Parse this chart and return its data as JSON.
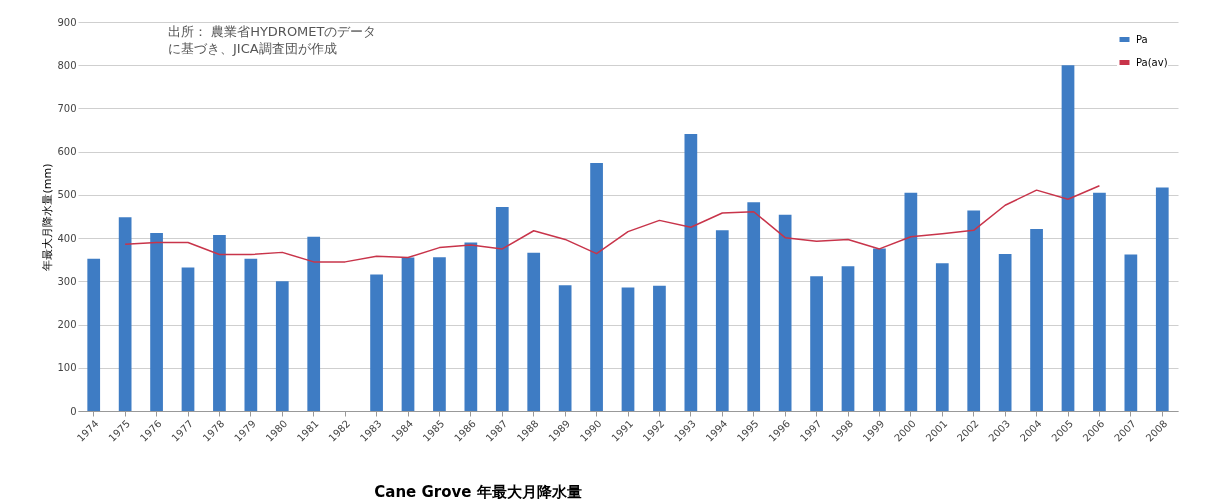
{
  "chart_data": {
    "type": "bar",
    "title": "Cane Grove 年最大月降水量",
    "ylabel": "年最大月降水量(mm)",
    "annotations": [
      "出所： 農業省HYDROMETのデータ",
      "に基づき、JICA調査団が作成"
    ],
    "categories": [
      "1974",
      "1975",
      "1976",
      "1977",
      "1978",
      "1979",
      "1980",
      "1981",
      "1982",
      "1983",
      "1984",
      "1985",
      "1986",
      "1987",
      "1988",
      "1989",
      "1990",
      "1991",
      "1992",
      "1993",
      "1994",
      "1995",
      "1996",
      "1997",
      "1998",
      "1999",
      "2000",
      "2001",
      "2002",
      "2003",
      "2004",
      "2005",
      "2006",
      "2007",
      "2008"
    ],
    "series": [
      {
        "name": "Pa",
        "color": "#3e7cc4",
        "values": [
          352,
          448,
          412,
          332,
          407,
          352,
          300,
          403,
          null,
          316,
          355,
          356,
          390,
          472,
          366,
          291,
          574,
          286,
          290,
          641,
          418,
          483,
          454,
          312,
          335,
          376,
          505,
          342,
          464,
          363,
          421,
          800,
          505,
          362,
          517
        ]
      },
      {
        "name": "Pa(av)",
        "type": "line",
        "color": "#c8344a",
        "values": [
          null,
          386,
          390,
          390,
          362,
          362,
          367,
          345,
          345,
          358,
          355,
          378,
          384,
          375,
          417,
          397,
          364,
          415,
          441,
          425,
          458,
          461,
          401,
          393,
          397,
          375,
          403,
          410,
          418,
          476,
          511,
          490,
          521,
          null,
          null
        ]
      }
    ],
    "ylim": [
      0,
      900
    ],
    "yticks": [
      0,
      100,
      200,
      300,
      400,
      500,
      600,
      700,
      800,
      900
    ],
    "grid": "y",
    "legend": "top right"
  }
}
